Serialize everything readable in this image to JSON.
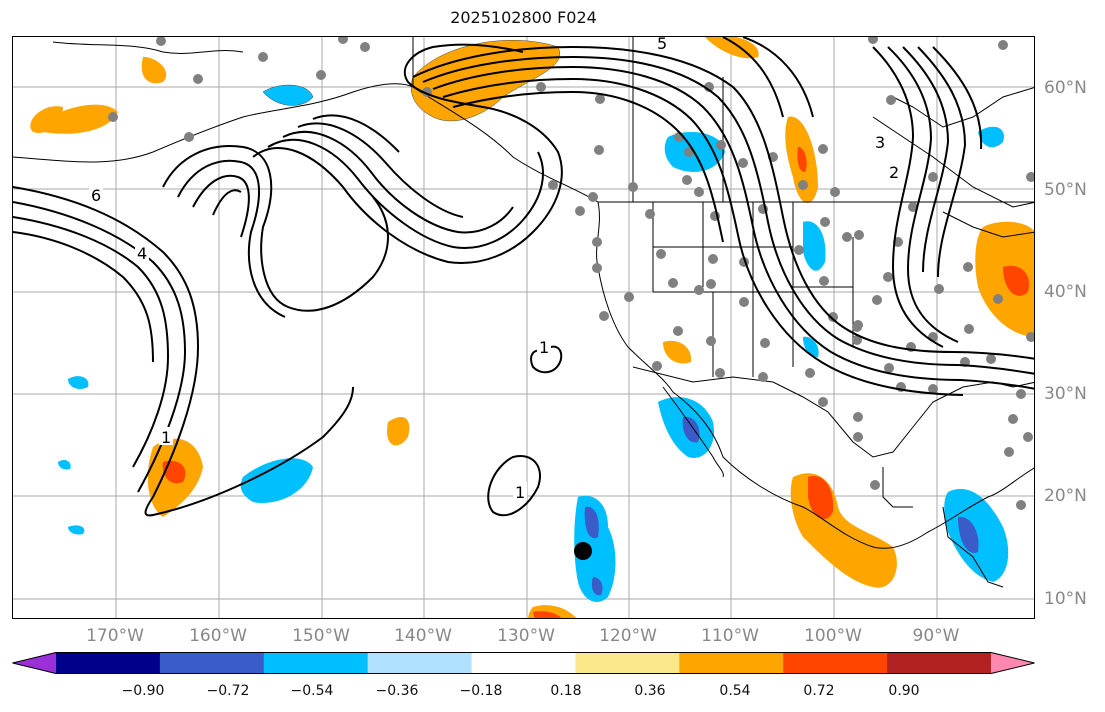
{
  "title": "2025102800 F024",
  "lon_labels": [
    {
      "text": "170°W",
      "lon": -170
    },
    {
      "text": "160°W",
      "lon": -160
    },
    {
      "text": "150°W",
      "lon": -150
    },
    {
      "text": "140°W",
      "lon": -140
    },
    {
      "text": "130°W",
      "lon": -130
    },
    {
      "text": "120°W",
      "lon": -120
    },
    {
      "text": "110°W",
      "lon": -110
    },
    {
      "text": "100°W",
      "lon": -100
    },
    {
      "text": "90°W",
      "lon": -90
    }
  ],
  "lat_labels": [
    {
      "text": "60°N",
      "lat": 60
    },
    {
      "text": "50°N",
      "lat": 50
    },
    {
      "text": "40°N",
      "lat": 40
    },
    {
      "text": "30°N",
      "lat": 30
    },
    {
      "text": "20°N",
      "lat": 20
    },
    {
      "text": "10°N",
      "lat": 10
    }
  ],
  "contour_labels": [
    "6",
    "4",
    "1",
    "1",
    "1",
    "5",
    "3",
    "2"
  ],
  "colorbar": {
    "colors": [
      "#9b30d9",
      "#00008b",
      "#3a5cc8",
      "#00bfff",
      "#b0e2ff",
      "#ffffff",
      "#fbe88a",
      "#ffa500",
      "#ff4500",
      "#b22222",
      "#ff88b0"
    ],
    "tick_labels": [
      "−0.90",
      "−0.72",
      "−0.54",
      "−0.36",
      "−0.18",
      "0.18",
      "0.36",
      "0.54",
      "0.72",
      "0.90"
    ]
  }
}
